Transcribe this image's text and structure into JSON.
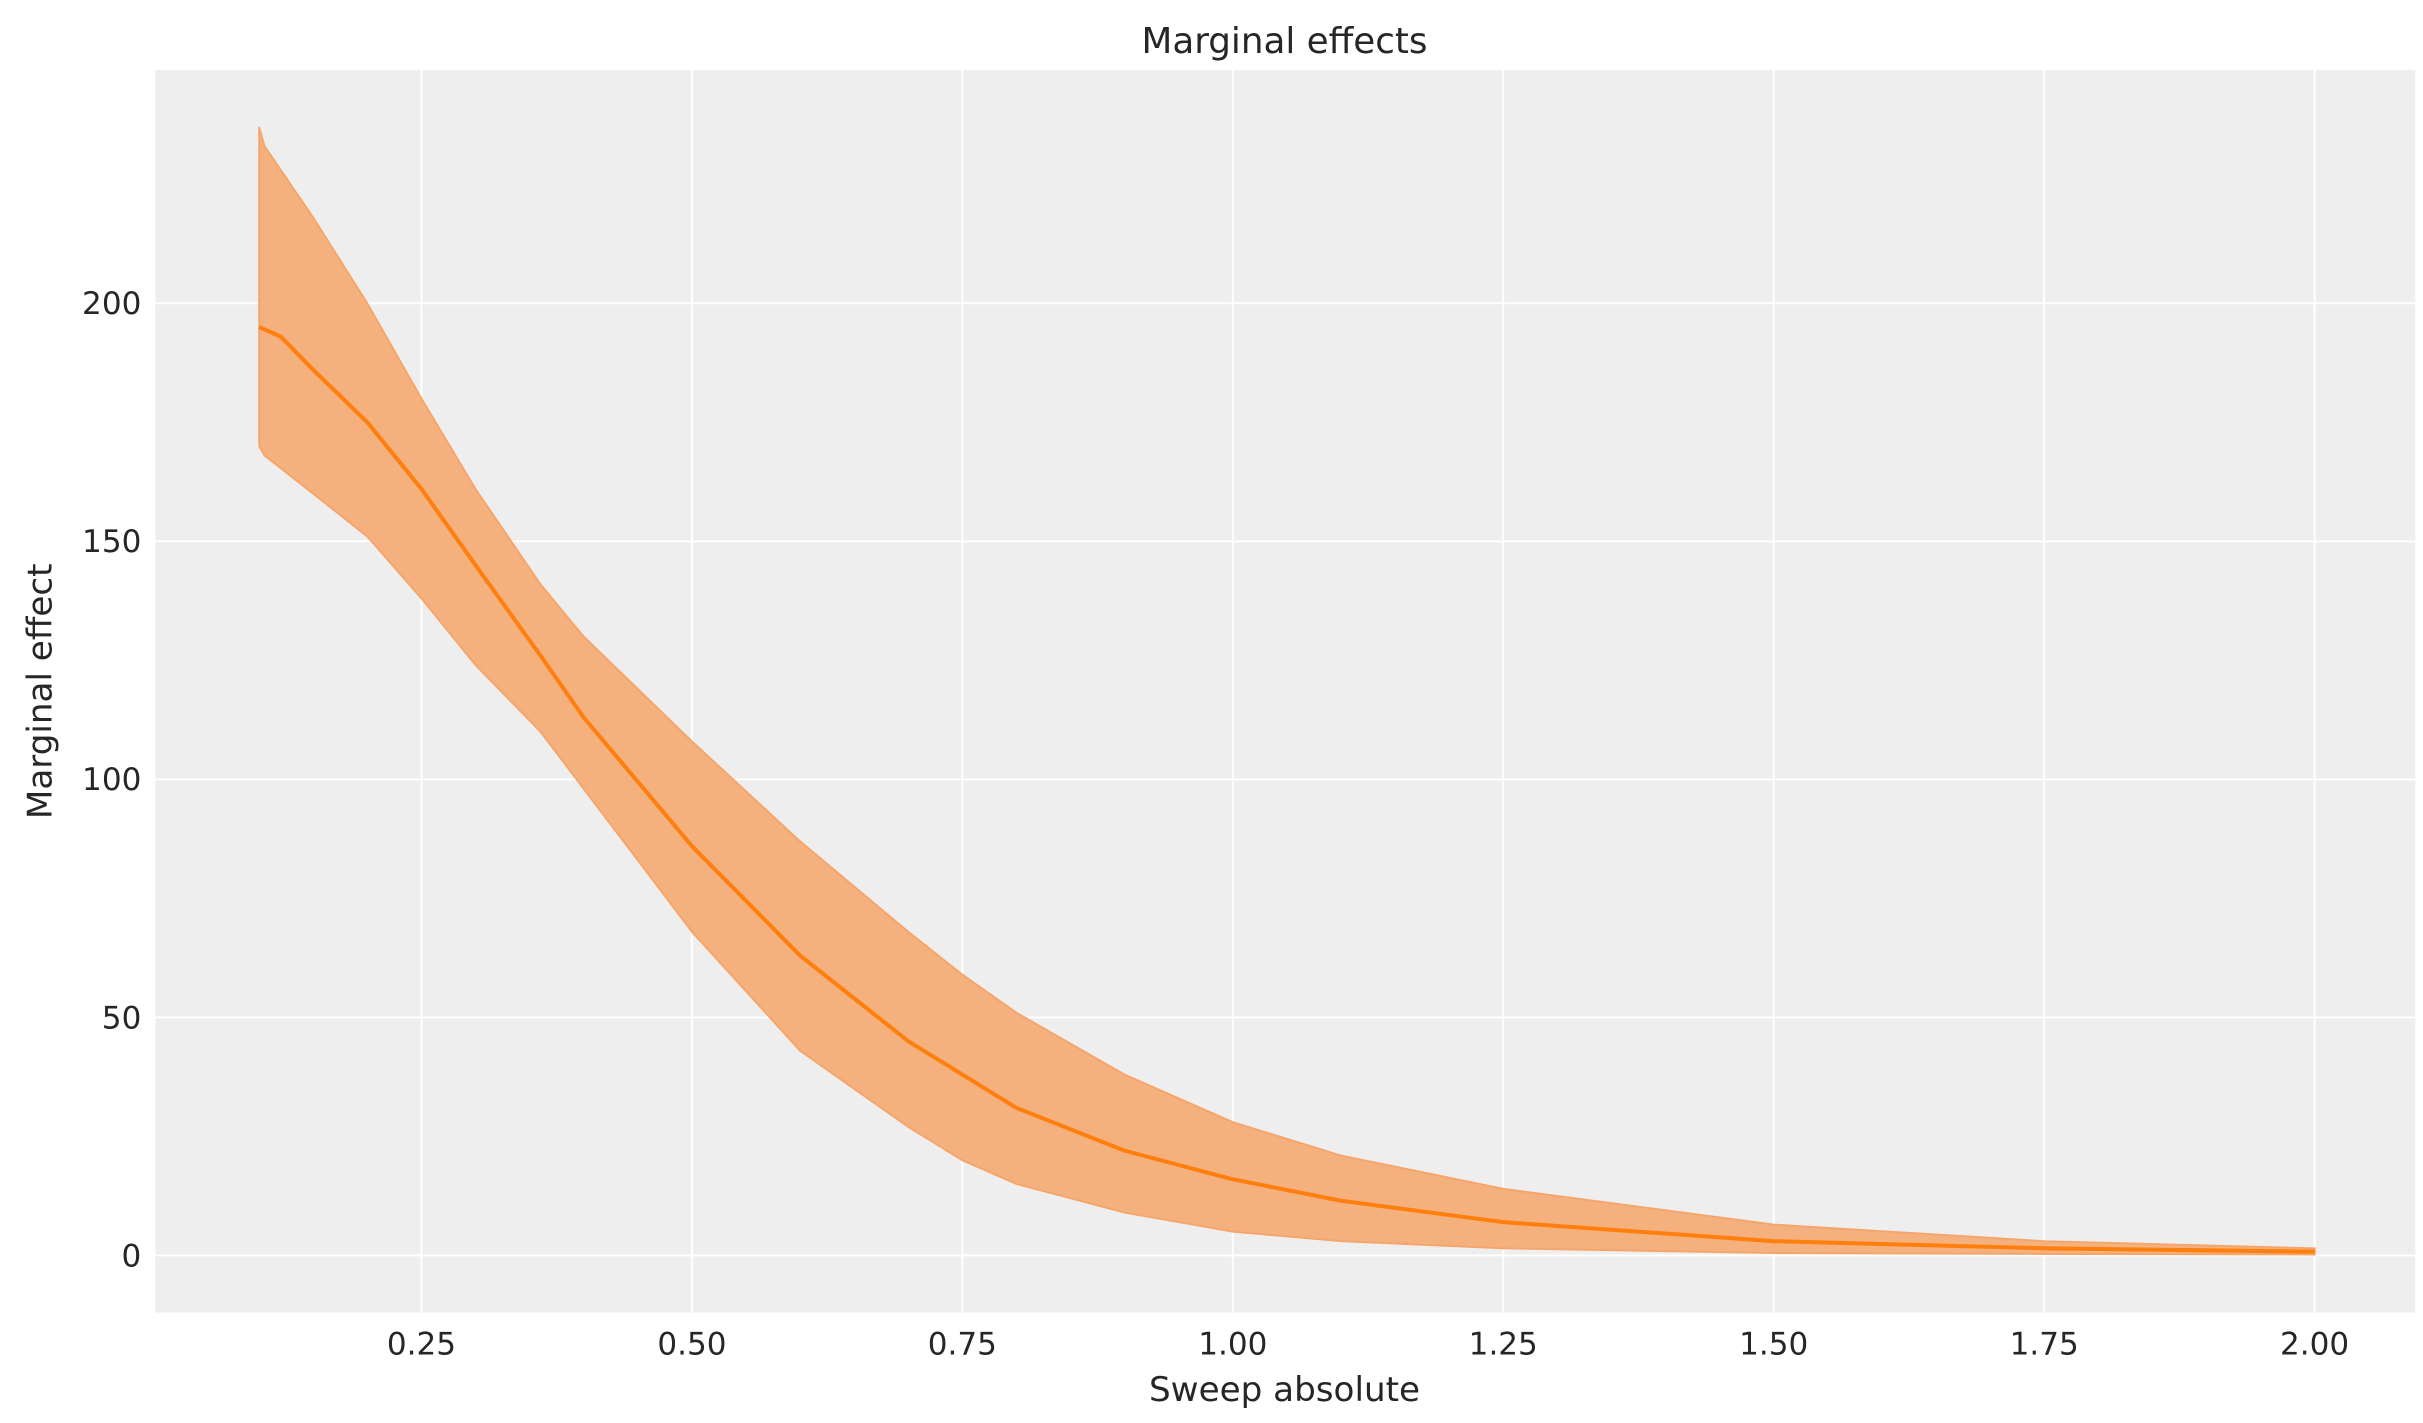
{
  "chart_data": {
    "type": "line",
    "title": "Marginal effects",
    "xlabel": "Sweep absolute",
    "ylabel": "Marginal effect",
    "xlim": [
      0.004,
      2.093
    ],
    "ylim": [
      -12,
      249
    ],
    "grid": true,
    "xticks": [
      0.25,
      0.5,
      0.75,
      1.0,
      1.25,
      1.5,
      1.75,
      2.0
    ],
    "xtick_labels": [
      "0.25",
      "0.50",
      "0.75",
      "1.00",
      "1.25",
      "1.50",
      "1.75",
      "2.00"
    ],
    "yticks": [
      0,
      50,
      100,
      150,
      200
    ],
    "ytick_labels": [
      "0",
      "50",
      "100",
      "150",
      "200"
    ],
    "colors": {
      "line": "#ff7f0e",
      "band": "#f4b07d",
      "background": "#eeeeee",
      "grid": "#ffffff"
    },
    "series": [
      {
        "type": "line",
        "x": [
          0.1,
          0.12,
          0.15,
          0.2,
          0.25,
          0.3,
          0.36,
          0.4,
          0.5,
          0.6,
          0.7,
          0.75,
          0.8,
          0.9,
          1.0,
          1.1,
          1.25,
          1.5,
          1.75,
          2.0
        ],
        "y": [
          195,
          193,
          186,
          175,
          161,
          145,
          126,
          113,
          86,
          63,
          45,
          38,
          31,
          22,
          16,
          11.5,
          7,
          3,
          1.5,
          0.8
        ]
      },
      {
        "type": "band",
        "x": [
          0.1,
          0.105,
          0.15,
          0.2,
          0.25,
          0.3,
          0.36,
          0.4,
          0.5,
          0.6,
          0.7,
          0.75,
          0.8,
          0.9,
          1.0,
          1.1,
          1.25,
          1.5,
          1.75,
          2.0
        ],
        "upper": [
          237,
          233,
          218,
          200,
          180,
          161,
          141,
          130,
          108,
          87,
          68,
          59,
          51,
          38,
          28,
          21,
          14,
          6.5,
          3,
          1.5
        ],
        "lower": [
          170,
          168,
          160,
          151,
          138,
          124,
          110,
          98,
          68,
          43,
          27,
          20,
          15,
          9,
          5,
          3,
          1.5,
          0.5,
          0.3,
          0.2
        ]
      }
    ]
  }
}
